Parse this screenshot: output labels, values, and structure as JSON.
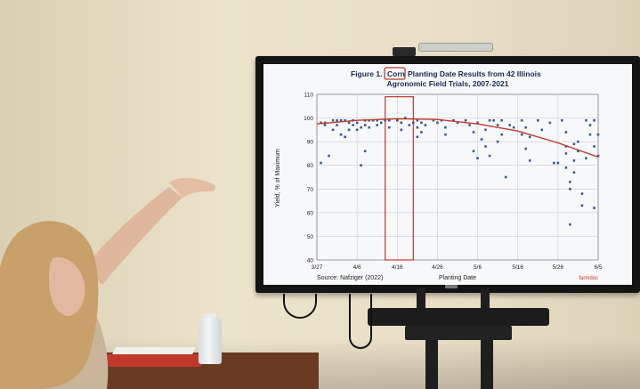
{
  "slide": {
    "title_line1_before": "Figure 1.",
    "title_highlight": "Corn",
    "title_line1_after": "Planting Date Results from 42 Illinois",
    "title_line2": "Agronomic Field Trials, 2007-2021",
    "source": "Source: Nafziger (2022)",
    "brand": "farmdoc"
  },
  "chart_data": {
    "type": "scatter",
    "title": "Corn Planting Date Results from 42 Illinois Agronomic Field Trials, 2007-2021",
    "xlabel": "Planting Date",
    "ylabel": "Yield, % of Maximum",
    "ylim": [
      40,
      110
    ],
    "yticks": [
      40,
      50,
      60,
      70,
      80,
      90,
      100,
      110
    ],
    "x_tick_labels": [
      "3/27",
      "4/6",
      "4/16",
      "4/26",
      "5/6",
      "5/16",
      "5/26",
      "6/5"
    ],
    "x_range_days": [
      0,
      70
    ],
    "highlight_window": {
      "label": "4/16",
      "start_day": 17,
      "end_day": 24
    },
    "fit_curve": {
      "color": "#c0392b",
      "points": [
        [
          0,
          97.5
        ],
        [
          10,
          99
        ],
        [
          20,
          99.7
        ],
        [
          30,
          99.4
        ],
        [
          40,
          97.5
        ],
        [
          50,
          94.5
        ],
        [
          60,
          89.5
        ],
        [
          70,
          83.5
        ]
      ]
    },
    "point_color": "#3b5b8c",
    "points": [
      [
        1,
        98
      ],
      [
        1,
        81
      ],
      [
        2,
        98
      ],
      [
        2,
        97
      ],
      [
        3,
        84
      ],
      [
        4,
        99
      ],
      [
        4,
        95
      ],
      [
        5,
        99
      ],
      [
        5,
        97
      ],
      [
        6,
        99
      ],
      [
        6,
        93
      ],
      [
        7,
        99
      ],
      [
        7,
        92
      ],
      [
        8,
        98
      ],
      [
        8,
        95
      ],
      [
        9,
        99
      ],
      [
        9,
        97
      ],
      [
        10,
        98
      ],
      [
        10,
        95
      ],
      [
        11,
        96
      ],
      [
        11,
        80
      ],
      [
        12,
        99
      ],
      [
        12,
        97
      ],
      [
        12,
        86
      ],
      [
        13,
        99
      ],
      [
        13,
        96
      ],
      [
        14,
        99
      ],
      [
        15,
        99
      ],
      [
        15,
        97
      ],
      [
        16,
        98
      ],
      [
        17,
        99
      ],
      [
        18,
        99
      ],
      [
        18,
        96
      ],
      [
        20,
        99
      ],
      [
        21,
        98
      ],
      [
        21,
        95
      ],
      [
        22,
        100
      ],
      [
        23,
        97
      ],
      [
        24,
        98
      ],
      [
        25,
        99
      ],
      [
        25,
        96
      ],
      [
        25,
        92
      ],
      [
        26,
        98
      ],
      [
        26,
        94
      ],
      [
        27,
        97
      ],
      [
        29,
        99
      ],
      [
        30,
        98
      ],
      [
        31,
        99
      ],
      [
        32,
        96
      ],
      [
        32,
        93
      ],
      [
        34,
        99
      ],
      [
        35,
        98
      ],
      [
        37,
        99
      ],
      [
        38,
        97
      ],
      [
        39,
        94
      ],
      [
        39,
        86
      ],
      [
        40,
        98
      ],
      [
        40,
        83
      ],
      [
        41,
        91
      ],
      [
        42,
        95
      ],
      [
        42,
        88
      ],
      [
        43,
        99
      ],
      [
        43,
        84
      ],
      [
        44,
        99
      ],
      [
        45,
        97
      ],
      [
        45,
        90
      ],
      [
        46,
        99
      ],
      [
        46,
        93
      ],
      [
        47,
        75
      ],
      [
        48,
        97
      ],
      [
        49,
        96
      ],
      [
        51,
        99
      ],
      [
        51,
        93
      ],
      [
        52,
        96
      ],
      [
        52,
        87
      ],
      [
        53,
        92
      ],
      [
        53,
        82
      ],
      [
        55,
        99
      ],
      [
        56,
        95
      ],
      [
        58,
        98
      ],
      [
        59,
        81
      ],
      [
        60,
        81
      ],
      [
        61,
        99
      ],
      [
        62,
        94
      ],
      [
        62,
        88
      ],
      [
        62,
        85
      ],
      [
        62,
        79
      ],
      [
        63,
        70
      ],
      [
        63,
        73
      ],
      [
        63,
        55
      ],
      [
        64,
        89
      ],
      [
        64,
        82
      ],
      [
        64,
        77
      ],
      [
        65,
        90
      ],
      [
        65,
        86
      ],
      [
        66,
        68
      ],
      [
        66,
        63
      ],
      [
        67,
        99
      ],
      [
        67,
        83
      ],
      [
        68,
        97
      ],
      [
        68,
        93
      ],
      [
        69,
        99
      ],
      [
        69,
        88
      ],
      [
        69,
        62
      ],
      [
        70,
        84
      ],
      [
        70,
        93
      ]
    ]
  }
}
